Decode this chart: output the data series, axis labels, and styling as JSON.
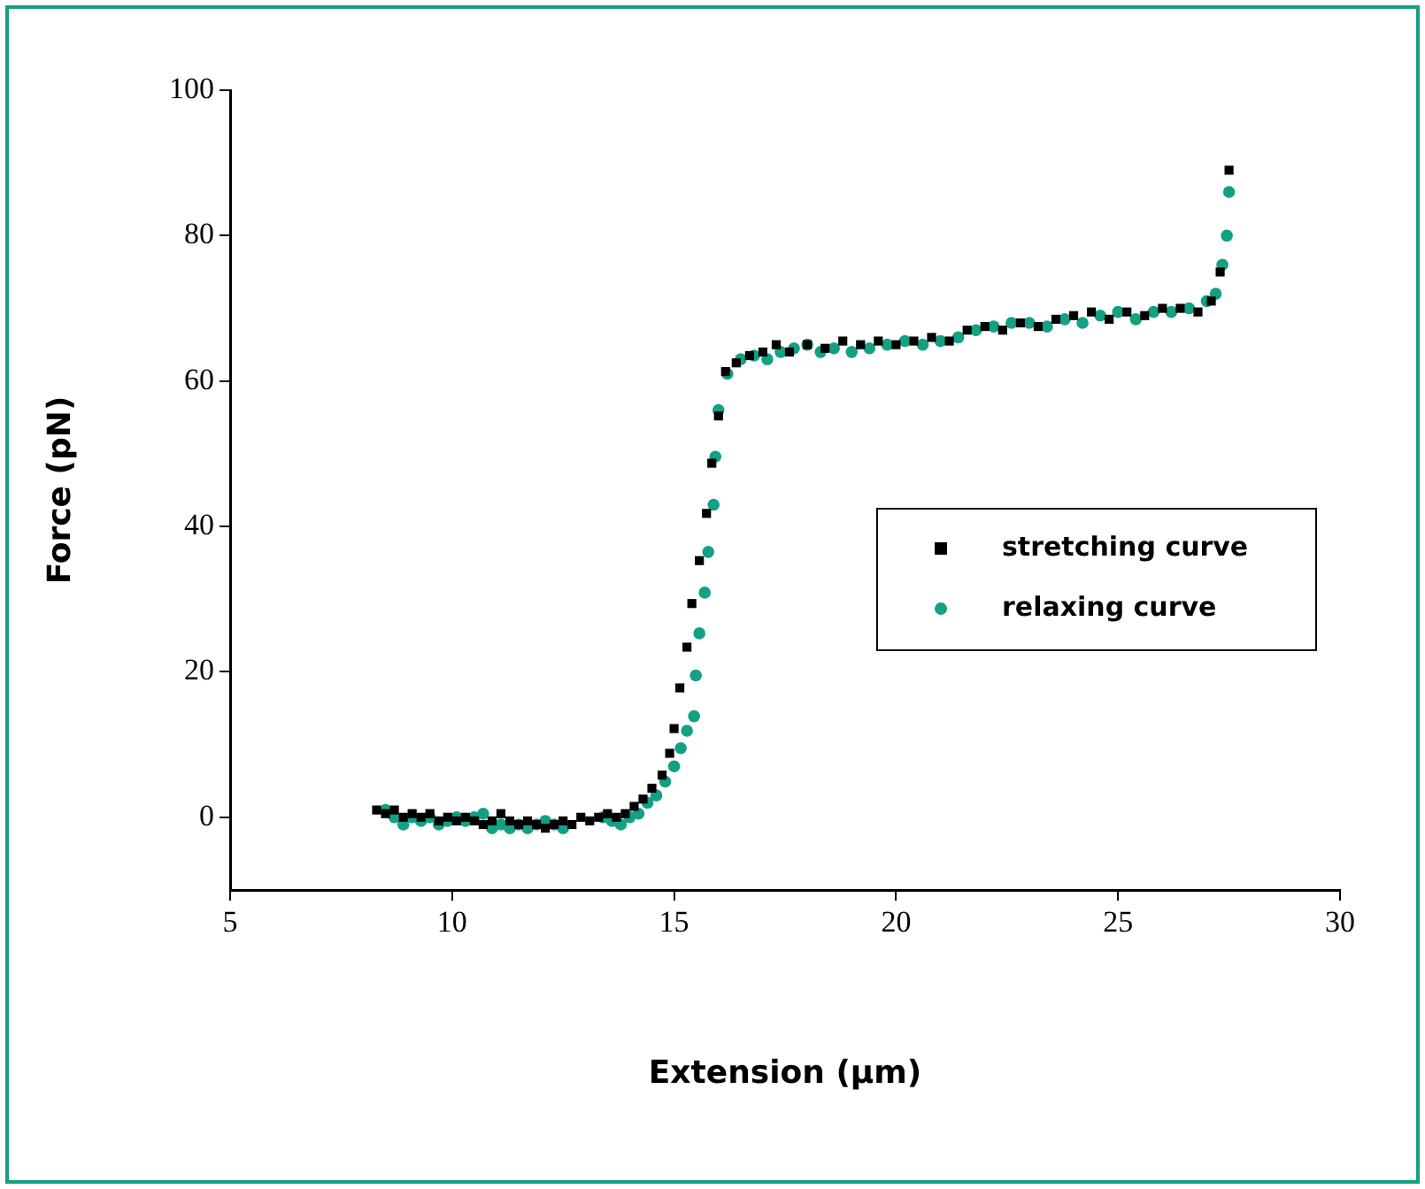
{
  "chart_data": {
    "type": "scatter",
    "xlabel": "Extension (μm)",
    "ylabel": "Force (pN)",
    "xlim": [
      5,
      30
    ],
    "xticks": [
      5,
      10,
      15,
      20,
      25,
      30
    ],
    "ylim": [
      -10,
      100
    ],
    "yticks": [
      0,
      20,
      40,
      60,
      80,
      100
    ],
    "legend": "right",
    "series": [
      {
        "name": "stretching curve",
        "color": "#000000",
        "marker": "square",
        "x": [
          8.3,
          8.5,
          8.7,
          8.9,
          9.1,
          9.3,
          9.5,
          9.7,
          9.9,
          10.1,
          10.3,
          10.5,
          10.7,
          10.9,
          11.1,
          11.3,
          11.5,
          11.7,
          11.9,
          12.1,
          12.3,
          12.5,
          12.7,
          12.9,
          13.1,
          13.3,
          13.5,
          13.7,
          13.9,
          14.1,
          14.3,
          14.5,
          14.73,
          14.9,
          15.0,
          15.13,
          15.29,
          15.4,
          15.57,
          15.73,
          15.85,
          16.0,
          16.16,
          16.4,
          16.7,
          17.0,
          17.3,
          17.6,
          18,
          18.4,
          18.8,
          19.2,
          19.6,
          20,
          20.4,
          20.8,
          21.2,
          21.6,
          22,
          22.4,
          22.8,
          23.2,
          23.6,
          24,
          24.4,
          24.8,
          25.2,
          25.6,
          26,
          26.4,
          26.8,
          27.1,
          27.3,
          27.5
        ],
        "values": [
          1,
          0.5,
          1,
          0,
          0.5,
          0,
          0.5,
          -0.5,
          0,
          -0.5,
          0,
          -0.5,
          -1,
          -0.5,
          0.5,
          -0.5,
          -1,
          -0.5,
          -1,
          -1.5,
          -1,
          -0.5,
          -1,
          0,
          -0.5,
          0,
          0.5,
          0,
          0.5,
          1.5,
          2.5,
          4,
          5.8,
          8.8,
          12.2,
          17.8,
          23.4,
          29.4,
          35.3,
          41.8,
          48.7,
          55.2,
          61.3,
          62.5,
          63.5,
          64,
          65,
          64,
          65,
          64.5,
          65.5,
          65,
          65.5,
          65,
          65.5,
          66,
          65.5,
          67,
          67.5,
          67,
          68,
          67.5,
          68.5,
          69,
          69.5,
          68.5,
          69.5,
          69,
          70,
          70,
          69.5,
          71,
          75,
          89
        ]
      },
      {
        "name": "relaxing curve",
        "color": "#13a085",
        "marker": "circle",
        "x": [
          8.5,
          8.7,
          8.9,
          9.1,
          9.3,
          9.5,
          9.7,
          9.9,
          10.1,
          10.3,
          10.5,
          10.7,
          10.9,
          11.1,
          11.3,
          11.5,
          11.7,
          11.9,
          12.1,
          12.3,
          12.5,
          13.4,
          13.6,
          13.8,
          14.0,
          14.2,
          14.4,
          14.6,
          14.8,
          15.0,
          15.15,
          15.29,
          15.45,
          15.49,
          15.57,
          15.69,
          15.77,
          15.89,
          15.93,
          16.0,
          16.2,
          16.5,
          16.8,
          17.1,
          17.4,
          17.7,
          18,
          18.3,
          18.6,
          19,
          19.4,
          19.8,
          20.2,
          20.6,
          21,
          21.4,
          21.8,
          22.2,
          22.6,
          23,
          23.4,
          23.8,
          24.2,
          24.6,
          25,
          25.4,
          25.8,
          26.2,
          26.6,
          27.0,
          27.2,
          27.35,
          27.45,
          27.5
        ],
        "values": [
          1,
          0,
          -1,
          0,
          -0.5,
          0,
          -1,
          -0.5,
          0,
          -0.5,
          0,
          0.5,
          -1.5,
          -1,
          -1.5,
          -1,
          -1.5,
          -1,
          -0.5,
          -1,
          -1.5,
          0,
          -0.5,
          -1,
          0,
          0.5,
          2,
          3,
          4.9,
          7,
          9.5,
          11.9,
          13.9,
          19.5,
          25.3,
          30.9,
          36.5,
          43,
          49.6,
          56,
          61,
          63,
          63.5,
          63,
          64,
          64.5,
          65,
          64,
          64.5,
          64,
          64.5,
          65,
          65.5,
          65,
          65.5,
          66,
          67,
          67.5,
          68,
          68,
          67.5,
          68.5,
          68,
          69,
          69.5,
          68.5,
          69.5,
          69.5,
          70,
          71,
          72,
          76,
          80,
          86
        ]
      }
    ]
  }
}
